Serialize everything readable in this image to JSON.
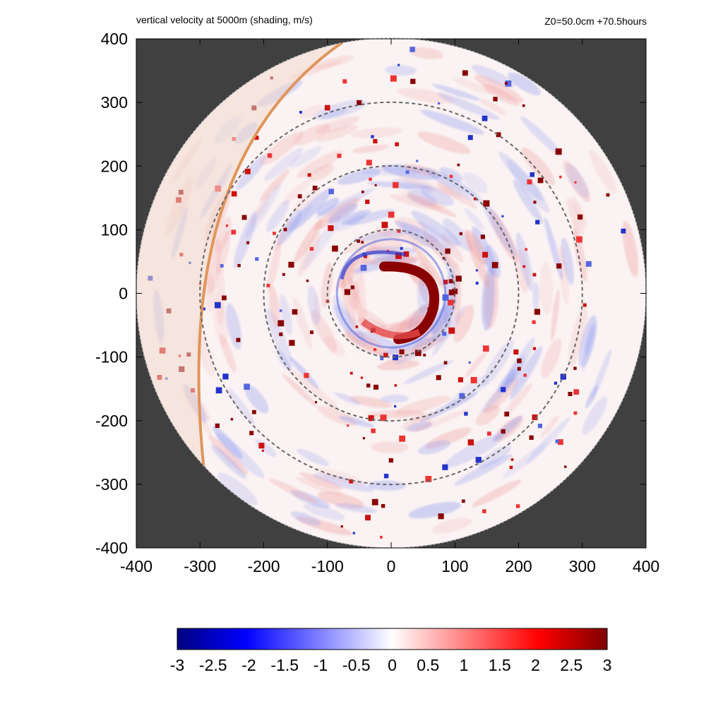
{
  "header": {
    "title": "vertical velocity at 5000m (shading, m/s)",
    "info": "Z0=50.0cm  +70.5hours"
  },
  "chart_data": {
    "type": "heatmap",
    "title": "vertical velocity at 5000m (shading, m/s)",
    "subtitle": "Z0=50.0cm  +70.5hours",
    "xlabel": "",
    "ylabel": "",
    "xlim": [
      -400,
      400
    ],
    "ylim": [
      -400,
      400
    ],
    "x_ticks": [
      -400,
      -300,
      -200,
      -100,
      0,
      100,
      200,
      300,
      400
    ],
    "y_ticks": [
      -400,
      -300,
      -200,
      -100,
      0,
      100,
      200,
      300,
      400
    ],
    "x_tick_labels": [
      "-400",
      "-300",
      "-200",
      "-100",
      "0",
      "100",
      "200",
      "300",
      "400"
    ],
    "y_tick_labels": [
      "-400",
      "-300",
      "-200",
      "-100",
      "0",
      "100",
      "200",
      "300",
      "400"
    ],
    "domain_radius": 400,
    "range_rings": [
      100,
      200,
      300
    ],
    "colorbar": {
      "min": -3,
      "max": 3,
      "ticks": [
        -3,
        -2.5,
        -2,
        -1.5,
        -1,
        -0.5,
        0,
        0.5,
        1,
        1.5,
        2,
        2.5,
        3
      ],
      "tick_labels": [
        "-3",
        "-2.5",
        "-2",
        "-1.5",
        "-1",
        "-0.5",
        "0",
        "0.5",
        "1",
        "1.5",
        "2",
        "2.5",
        "3"
      ],
      "colors": [
        "#00007f",
        "#0000ff",
        "#ffffff",
        "#ff0000",
        "#7f0000"
      ]
    },
    "features": {
      "eyewall_updraft": {
        "center": [
          40,
          10
        ],
        "peak_value": 3
      },
      "outer_arc_boundary": {
        "color": "#e0955a"
      }
    },
    "background_color": "#404040"
  }
}
